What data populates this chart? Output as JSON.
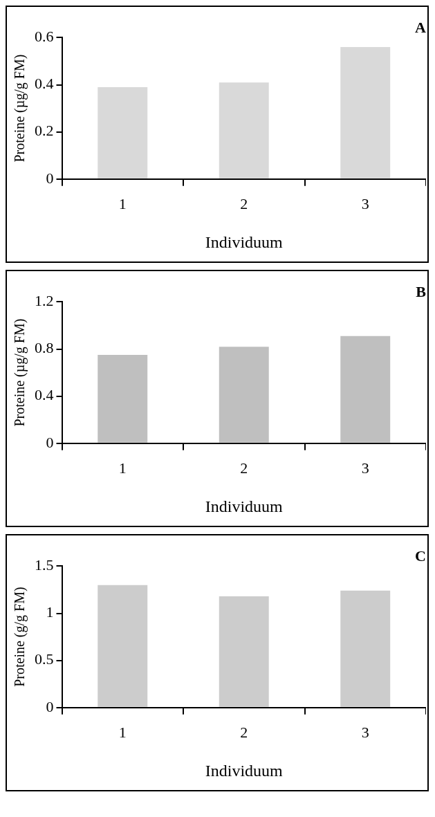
{
  "chart_data": [
    {
      "type": "bar",
      "title": "A",
      "xlabel": "Individuum",
      "ylabel": "Proteine (µg/g FM)",
      "categories": [
        "1",
        "2",
        "3"
      ],
      "values": [
        0.39,
        0.41,
        0.56
      ],
      "color": "#d9d9d9",
      "ylim": [
        0,
        0.6
      ],
      "yticks": [
        0,
        0.2,
        0.4,
        0.6
      ]
    },
    {
      "type": "bar",
      "title": "B",
      "xlabel": "Individuum",
      "ylabel": "Proteine (µg/g FM)",
      "categories": [
        "1",
        "2",
        "3"
      ],
      "values": [
        0.75,
        0.82,
        0.91
      ],
      "color": "#bfbfbf",
      "ylim": [
        0,
        1.2
      ],
      "yticks": [
        0,
        0.4,
        0.8,
        1.2
      ]
    },
    {
      "type": "bar",
      "title": "C",
      "xlabel": "Individuum",
      "ylabel": "Proteine (g/g FM)",
      "categories": [
        "1",
        "2",
        "3"
      ],
      "values": [
        1.3,
        1.18,
        1.24
      ],
      "color": "#cccccc",
      "ylim": [
        0,
        1.5
      ],
      "yticks": [
        0,
        0.5,
        1,
        1.5
      ]
    }
  ]
}
